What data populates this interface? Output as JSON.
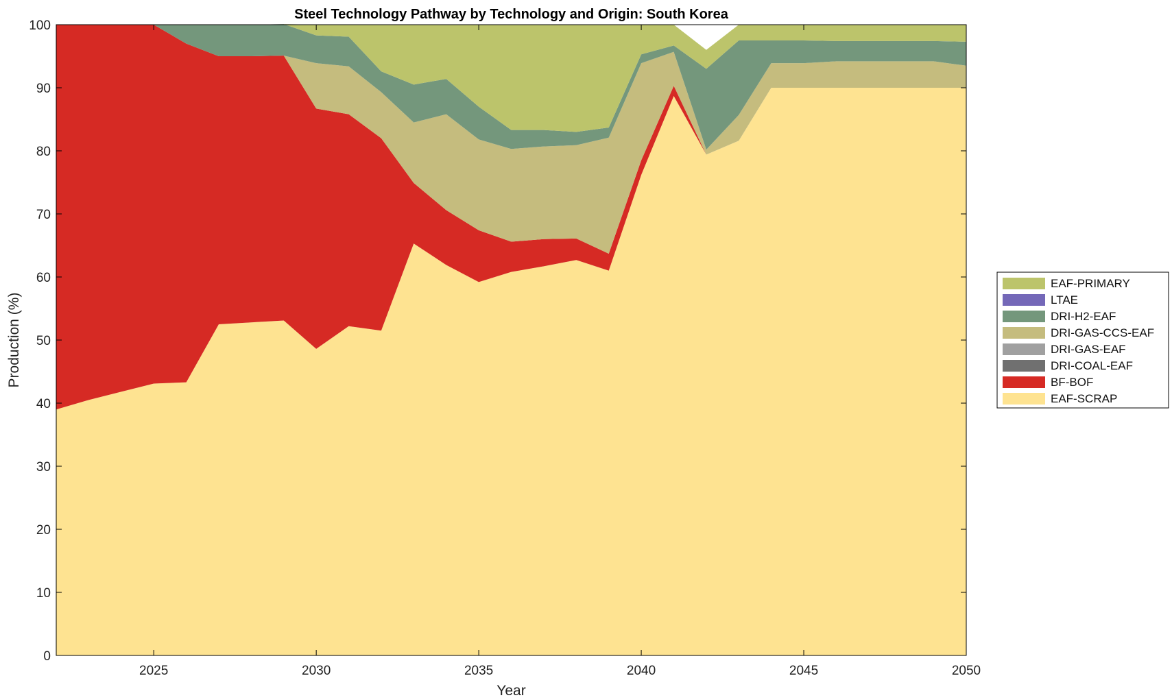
{
  "chart_data": {
    "type": "area",
    "title": "Steel Technology Pathway by Technology and Origin: South Korea",
    "xlabel": "Year",
    "ylabel": "Production (%)",
    "xlim": [
      2022,
      2050
    ],
    "ylim": [
      0,
      100
    ],
    "xticks": [
      2025,
      2030,
      2035,
      2040,
      2045,
      2050
    ],
    "yticks": [
      0,
      10,
      20,
      30,
      40,
      50,
      60,
      70,
      80,
      90,
      100
    ],
    "grid": false,
    "legend_position": "right",
    "x": [
      2022,
      2023,
      2024,
      2025,
      2026,
      2027,
      2028,
      2029,
      2030,
      2031,
      2032,
      2033,
      2034,
      2035,
      2036,
      2037,
      2038,
      2039,
      2040,
      2041,
      2042,
      2043,
      2044,
      2045,
      2046,
      2047,
      2048,
      2049,
      2050
    ],
    "series": [
      {
        "name": "EAF-SCRAP",
        "color": "#FEE391",
        "values": [
          39.0,
          40.5,
          41.8,
          43.1,
          43.3,
          52.5,
          52.8,
          53.1,
          48.6,
          52.2,
          51.5,
          65.3,
          61.9,
          59.2,
          60.8,
          61.7,
          62.7,
          61.0,
          76.2,
          88.7,
          79.4,
          81.6,
          90.0,
          90.0,
          90.0,
          90.0,
          90.0,
          90.0,
          90.0
        ]
      },
      {
        "name": "BF-BOF",
        "color": "#D62A24",
        "values": [
          61.0,
          59.5,
          58.2,
          56.9,
          53.7,
          42.5,
          42.2,
          42.0,
          38.1,
          33.6,
          30.5,
          9.6,
          8.7,
          8.2,
          4.8,
          4.3,
          3.4,
          2.7,
          2.3,
          1.6,
          0.0,
          0.0,
          0.0,
          0.0,
          0.0,
          0.0,
          0.0,
          0.0,
          0.0
        ]
      },
      {
        "name": "DRI-COAL-EAF",
        "color": "#707070",
        "values": [
          0,
          0,
          0,
          0,
          0,
          0,
          0,
          0,
          0,
          0,
          0,
          0,
          0,
          0,
          0,
          0,
          0,
          0,
          0,
          0,
          0,
          0,
          0,
          0,
          0,
          0,
          0,
          0,
          0
        ]
      },
      {
        "name": "DRI-GAS-EAF",
        "color": "#A0A0A0",
        "values": [
          0,
          0,
          0,
          0,
          0,
          0,
          0,
          0,
          0,
          0,
          0,
          0,
          0,
          0,
          0,
          0,
          0,
          0,
          0,
          0,
          0,
          0,
          0,
          0,
          0,
          0,
          0,
          0,
          0
        ]
      },
      {
        "name": "DRI-GAS-CCS-EAF",
        "color": "#C5BC7E",
        "values": [
          0.0,
          0.0,
          0.0,
          0.0,
          0.0,
          0.0,
          0.0,
          0.0,
          7.2,
          7.6,
          7.3,
          9.6,
          15.2,
          14.4,
          14.7,
          14.7,
          14.8,
          18.4,
          15.4,
          5.4,
          0.8,
          4.1,
          3.9,
          3.9,
          4.2,
          4.2,
          4.2,
          4.2,
          3.5
        ]
      },
      {
        "name": "DRI-H2-EAF",
        "color": "#74977C",
        "values": [
          0.0,
          0.0,
          0.0,
          0.0,
          3.0,
          5.0,
          5.0,
          5.0,
          4.4,
          4.7,
          3.3,
          6.0,
          5.6,
          5.2,
          3.0,
          2.6,
          2.1,
          1.6,
          1.4,
          1.0,
          12.8,
          11.8,
          3.6,
          3.6,
          3.2,
          3.2,
          3.2,
          3.2,
          3.8
        ]
      },
      {
        "name": "LTAE",
        "color": "#7468B8",
        "values": [
          0,
          0,
          0,
          0,
          0,
          0,
          0,
          0,
          0,
          0,
          0,
          0,
          0,
          0,
          0,
          0,
          0,
          0,
          0,
          0,
          0,
          0,
          0,
          0,
          0,
          0,
          0,
          0,
          0
        ]
      },
      {
        "name": "EAF-PRIMARY",
        "color": "#BCC46B",
        "values": [
          0.0,
          0.0,
          0.0,
          0.0,
          0.0,
          0.0,
          0.0,
          0.0,
          1.7,
          1.9,
          7.4,
          9.5,
          8.6,
          13.0,
          16.7,
          16.7,
          17.0,
          16.3,
          4.7,
          3.3,
          3.0,
          2.5,
          2.5,
          2.5,
          2.6,
          2.6,
          2.6,
          2.6,
          2.7
        ]
      }
    ],
    "legend": [
      "EAF-PRIMARY",
      "LTAE",
      "DRI-H2-EAF",
      "DRI-GAS-CCS-EAF",
      "DRI-GAS-EAF",
      "DRI-COAL-EAF",
      "BF-BOF",
      "EAF-SCRAP"
    ]
  }
}
